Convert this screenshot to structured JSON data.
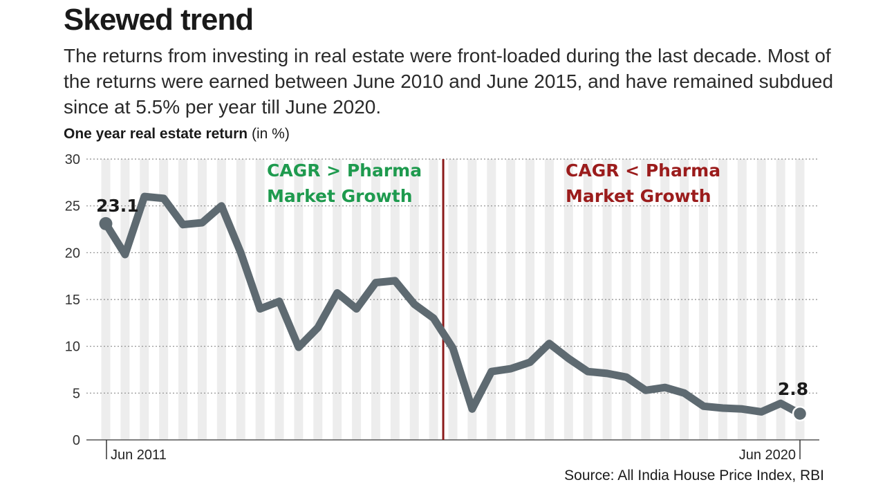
{
  "header": {
    "title": "Skewed trend",
    "subtitle": "The returns from investing in real estate were front-loaded during the last decade. Most of the returns were earned between June 2010 and June 2015, and have remained subdued since at 5.5% per year till June 2020."
  },
  "axis_title": {
    "main": "One year real estate return",
    "unit": " (in %)"
  },
  "source": "Source: All India House Price Index, RBI",
  "colors": {
    "line": "#5e6a71",
    "green_label": "#1e9a4e",
    "red_label": "#9b1c1c",
    "divider": "#8b1a1a",
    "stripe": "#ededed"
  },
  "chart_data": {
    "type": "line",
    "title": "One year real estate return (in %)",
    "ylim": [
      0,
      30
    ],
    "yticks": [
      0,
      5,
      10,
      15,
      20,
      25,
      30
    ],
    "ytick_labels": [
      "0",
      "5",
      "10",
      "15",
      "20",
      "25",
      "30"
    ],
    "x_tick_labels": [
      "Jun 2011",
      "Jun 2020"
    ],
    "grid": true,
    "series": [
      {
        "name": "",
        "values": [
          23.1,
          19.8,
          26.0,
          25.8,
          23.0,
          23.2,
          25.0,
          20.0,
          14.0,
          14.8,
          9.9,
          12.0,
          15.7,
          14.0,
          16.8,
          17.0,
          14.5,
          13.0,
          9.8,
          3.3,
          7.3,
          7.6,
          8.3,
          10.3,
          8.7,
          7.3,
          7.1,
          6.7,
          5.3,
          5.6,
          5.0,
          3.6,
          3.4,
          3.3,
          3.0,
          3.9,
          2.8
        ]
      }
    ],
    "divider_after_index": 17.5,
    "annotations": {
      "left_zone": [
        "CAGR > Pharma",
        "Market Growth"
      ],
      "right_zone": [
        "CAGR < Pharma",
        "Market Growth"
      ],
      "start_value": "23.1",
      "end_value": "2.8"
    }
  }
}
